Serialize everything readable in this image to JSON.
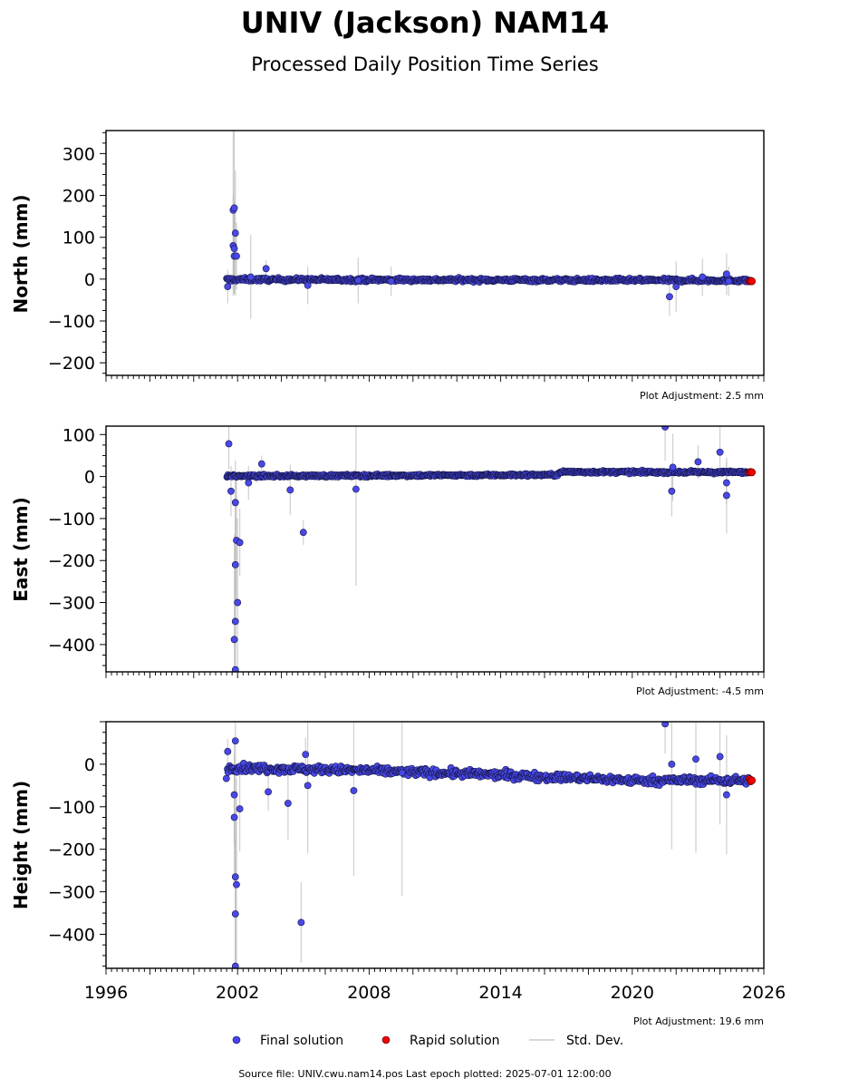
{
  "title": "UNIV (Jackson) NAM14",
  "subtitle": "Processed Daily Position Time Series",
  "source_note": "Source file: UNIV.cwu.nam14.pos  Last epoch plotted: 2025-07-01 12:00:00",
  "legend": {
    "placement": "bottom-center",
    "items": [
      {
        "label": "Final solution",
        "color": "#4444ee",
        "kind": "marker"
      },
      {
        "label": "Rapid solution",
        "color": "#ee0000",
        "kind": "marker"
      },
      {
        "label": "Std. Dev.",
        "color": "#cccccc",
        "kind": "line"
      }
    ]
  },
  "chart_data": [
    {
      "type": "scatter",
      "ylabel": "North (mm)",
      "adjustment": "Plot Adjustment: 2.5 mm",
      "xlim": [
        1996,
        2026
      ],
      "ylim": [
        -230,
        355
      ],
      "yticks": [
        -200,
        -100,
        0,
        100,
        200,
        300
      ],
      "xticks": [],
      "grid": false,
      "final_trend": [
        [
          2001.5,
          -1
        ],
        [
          2025.3,
          -3
        ]
      ],
      "final_scatter": 4,
      "outliers": [
        [
          2001.55,
          -18,
          40
        ],
        [
          2001.8,
          165,
          190
        ],
        [
          2001.85,
          170,
          190
        ],
        [
          2001.8,
          80,
          120
        ],
        [
          2001.85,
          73,
          110
        ],
        [
          2001.9,
          110,
          150
        ],
        [
          2001.85,
          55,
          90
        ],
        [
          2001.95,
          55,
          80
        ],
        [
          2002.6,
          5,
          100
        ],
        [
          2003.3,
          25,
          20
        ],
        [
          2005.2,
          -15,
          45
        ],
        [
          2007.5,
          -3,
          55
        ],
        [
          2009.0,
          -5,
          35
        ],
        [
          2021.7,
          -42,
          45
        ],
        [
          2022.0,
          -18,
          60
        ],
        [
          2023.2,
          5,
          45
        ],
        [
          2024.3,
          12,
          50
        ],
        [
          2024.4,
          -5,
          35
        ]
      ],
      "rapid": [
        [
          2025.35,
          -5
        ],
        [
          2025.4,
          -4
        ],
        [
          2025.45,
          -5
        ]
      ]
    },
    {
      "type": "scatter",
      "ylabel": "East (mm)",
      "adjustment": "Plot Adjustment: -4.5 mm",
      "xlim": [
        1996,
        2026
      ],
      "ylim": [
        -465,
        120
      ],
      "yticks": [
        -400,
        -300,
        -200,
        -100,
        0,
        100
      ],
      "xticks": [],
      "grid": false,
      "final_trend": [
        [
          2001.5,
          1
        ],
        [
          2016.6,
          4
        ],
        [
          2016.7,
          11
        ],
        [
          2025.3,
          10
        ]
      ],
      "final_scatter": 3,
      "outliers": [
        [
          2001.6,
          78,
          60
        ],
        [
          2001.7,
          -35,
          60
        ],
        [
          2001.9,
          -62,
          100
        ],
        [
          2001.95,
          -152,
          150
        ],
        [
          2002.1,
          -157,
          80
        ],
        [
          2001.9,
          -210,
          200
        ],
        [
          2002.0,
          -300,
          200
        ],
        [
          2001.9,
          -345,
          250
        ],
        [
          2001.85,
          -388,
          250
        ],
        [
          2001.9,
          -460,
          300
        ],
        [
          2002.5,
          -15,
          40
        ],
        [
          2003.1,
          30,
          20
        ],
        [
          2004.4,
          -32,
          60
        ],
        [
          2005.0,
          -133,
          30
        ],
        [
          2007.4,
          -30,
          230
        ],
        [
          2021.5,
          118,
          80
        ],
        [
          2021.8,
          -35,
          60
        ],
        [
          2021.85,
          22,
          80
        ],
        [
          2023.0,
          35,
          40
        ],
        [
          2024.0,
          58,
          60
        ],
        [
          2024.3,
          -15,
          50
        ],
        [
          2024.3,
          -45,
          90
        ]
      ],
      "rapid": [
        [
          2025.35,
          10
        ],
        [
          2025.4,
          11
        ],
        [
          2025.45,
          10
        ]
      ]
    },
    {
      "type": "scatter",
      "ylabel": "Height (mm)",
      "adjustment": "Plot Adjustment: 19.6 mm",
      "xlim": [
        1996,
        2026
      ],
      "ylim": [
        -480,
        100
      ],
      "yticks": [
        -400,
        -300,
        -200,
        -100,
        0
      ],
      "xticks": [
        1996,
        2002,
        2008,
        2014,
        2020,
        2026
      ],
      "grid": false,
      "final_trend": [
        [
          2001.5,
          -8
        ],
        [
          2008,
          -15
        ],
        [
          2014,
          -25
        ],
        [
          2020,
          -38
        ],
        [
          2025.3,
          -38
        ]
      ],
      "final_scatter": 9,
      "outliers": [
        [
          2001.55,
          30,
          30
        ],
        [
          2001.9,
          55,
          60
        ],
        [
          2001.85,
          -72,
          120
        ],
        [
          2001.85,
          -125,
          150
        ],
        [
          2002.1,
          -105,
          100
        ],
        [
          2001.9,
          -265,
          250
        ],
        [
          2001.95,
          -283,
          250
        ],
        [
          2001.9,
          -352,
          250
        ],
        [
          2001.9,
          -475,
          300
        ],
        [
          2003.4,
          -65,
          45
        ],
        [
          2004.3,
          -92,
          85
        ],
        [
          2005.1,
          23,
          40
        ],
        [
          2005.2,
          -50,
          160
        ],
        [
          2004.9,
          -372,
          95
        ],
        [
          2007.3,
          -62,
          200
        ],
        [
          2009.5,
          -20,
          290
        ],
        [
          2021.5,
          95,
          70
        ],
        [
          2021.8,
          0,
          200
        ],
        [
          2022.9,
          12,
          220
        ],
        [
          2024.0,
          18,
          160
        ],
        [
          2024.3,
          -72,
          140
        ]
      ],
      "rapid": [
        [
          2025.35,
          -35
        ],
        [
          2025.4,
          -40
        ],
        [
          2025.45,
          -38
        ]
      ]
    }
  ]
}
